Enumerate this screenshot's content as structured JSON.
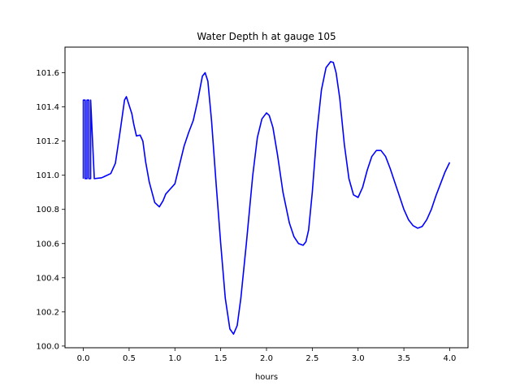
{
  "chart_data": {
    "type": "line",
    "title": "Water Depth h at gauge 105",
    "xlabel": "hours",
    "ylabel": "",
    "xlim": [
      -0.2,
      4.2
    ],
    "ylim": [
      99.99,
      101.75
    ],
    "xticks": [
      0.0,
      0.5,
      1.0,
      1.5,
      2.0,
      2.5,
      3.0,
      3.5,
      4.0
    ],
    "xtick_labels": [
      "0.0",
      "0.5",
      "1.0",
      "1.5",
      "2.0",
      "2.5",
      "3.0",
      "3.5",
      "4.0"
    ],
    "yticks": [
      100.0,
      100.2,
      100.4,
      100.6,
      100.8,
      101.0,
      101.2,
      101.4,
      101.6
    ],
    "ytick_labels": [
      "100.0",
      "100.2",
      "100.4",
      "100.6",
      "100.8",
      "101.0",
      "101.2",
      "101.4",
      "101.6"
    ],
    "grid": false,
    "series": [
      {
        "color": "#0000ff",
        "x": [
          0.0,
          0.0,
          0.02,
          0.02,
          0.04,
          0.04,
          0.06,
          0.06,
          0.08,
          0.08,
          0.12,
          0.2,
          0.3,
          0.35,
          0.4,
          0.45,
          0.47,
          0.5,
          0.53,
          0.55,
          0.58,
          0.62,
          0.65,
          0.68,
          0.72,
          0.78,
          0.83,
          0.87,
          0.9,
          0.95,
          1.0,
          1.05,
          1.1,
          1.15,
          1.2,
          1.25,
          1.3,
          1.33,
          1.36,
          1.4,
          1.45,
          1.5,
          1.55,
          1.6,
          1.64,
          1.68,
          1.72,
          1.78,
          1.85,
          1.9,
          1.95,
          2.0,
          2.03,
          2.07,
          2.12,
          2.18,
          2.25,
          2.3,
          2.35,
          2.4,
          2.43,
          2.46,
          2.5,
          2.55,
          2.6,
          2.65,
          2.7,
          2.73,
          2.76,
          2.8,
          2.85,
          2.9,
          2.95,
          3.0,
          3.05,
          3.1,
          3.15,
          3.2,
          3.25,
          3.3,
          3.35,
          3.4,
          3.45,
          3.5,
          3.55,
          3.6,
          3.65,
          3.7,
          3.75,
          3.8,
          3.85,
          3.9,
          3.95,
          4.0
        ],
        "y": [
          100.98,
          101.44,
          101.44,
          100.98,
          100.98,
          101.44,
          101.44,
          100.98,
          100.98,
          101.44,
          100.98,
          100.985,
          101.01,
          101.07,
          101.25,
          101.44,
          101.46,
          101.41,
          101.36,
          101.3,
          101.23,
          101.235,
          101.2,
          101.08,
          100.96,
          100.84,
          100.815,
          100.85,
          100.89,
          100.92,
          100.95,
          101.06,
          101.17,
          101.25,
          101.32,
          101.44,
          101.58,
          101.6,
          101.55,
          101.32,
          100.95,
          100.6,
          100.28,
          100.1,
          100.07,
          100.12,
          100.28,
          100.6,
          101.0,
          101.22,
          101.33,
          101.365,
          101.35,
          101.28,
          101.12,
          100.9,
          100.72,
          100.64,
          100.6,
          100.59,
          100.61,
          100.68,
          100.9,
          101.25,
          101.5,
          101.63,
          101.665,
          101.66,
          101.6,
          101.45,
          101.18,
          100.98,
          100.885,
          100.87,
          100.93,
          101.03,
          101.11,
          101.145,
          101.145,
          101.11,
          101.04,
          100.96,
          100.88,
          100.8,
          100.74,
          100.705,
          100.69,
          100.7,
          100.74,
          100.8,
          100.88,
          100.95,
          101.02,
          101.075
        ]
      }
    ]
  }
}
